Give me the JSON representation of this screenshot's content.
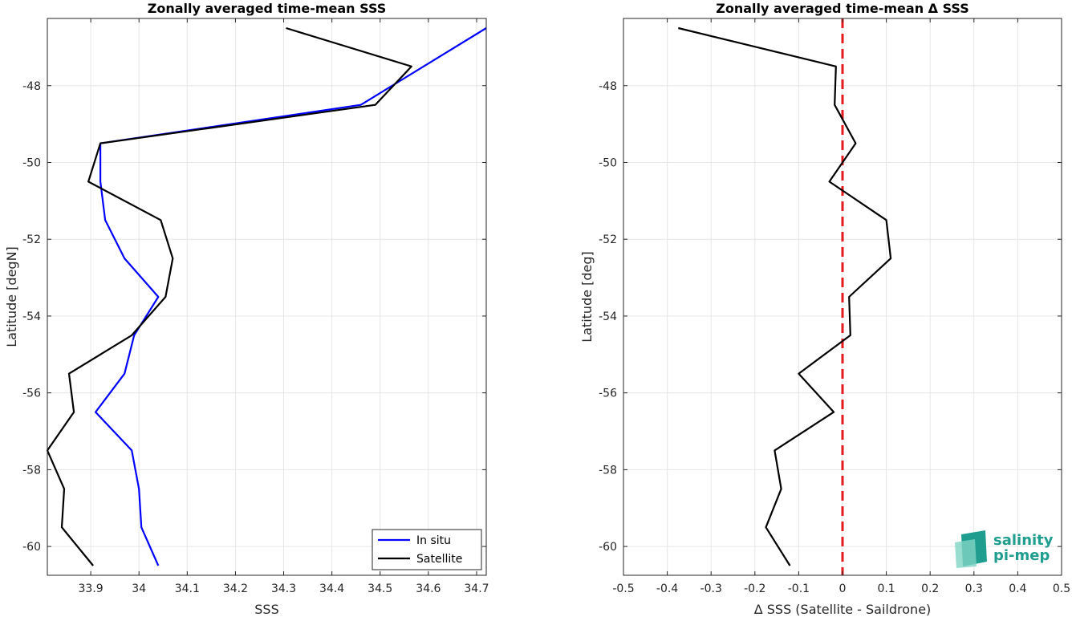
{
  "chart_data": [
    {
      "type": "line",
      "title": "Zonally averaged time-mean SSS",
      "xlabel": "SSS",
      "ylabel": "Latitude [degN]",
      "xlim": [
        33.81,
        34.72
      ],
      "ylim": [
        -60.75,
        -46.25
      ],
      "xticks": [
        33.9,
        34.0,
        34.1,
        34.2,
        34.3,
        34.4,
        34.5,
        34.6,
        34.7
      ],
      "xtick_labels": [
        "33.9",
        "34",
        "34.1",
        "34.2",
        "34.3",
        "34.4",
        "34.5",
        "34.6",
        "34.7"
      ],
      "yticks": [
        -60,
        -58,
        -56,
        -54,
        -52,
        -50,
        -48
      ],
      "ytick_labels": [
        "-60",
        "-58",
        "-56",
        "-54",
        "-52",
        "-50",
        "-48"
      ],
      "grid": true,
      "legend": "bottom-right",
      "series": [
        {
          "name": "In situ",
          "color": "#0000ff",
          "x": [
            34.72,
            34.46,
            33.92,
            33.92,
            33.93,
            33.97,
            34.04,
            33.99,
            33.97,
            33.91,
            33.985,
            34.0,
            34.005,
            34.04
          ],
          "y": [
            -46.5,
            -48.5,
            -49.5,
            -50.5,
            -51.5,
            -52.5,
            -53.5,
            -54.5,
            -55.5,
            -56.5,
            -57.5,
            -58.5,
            -59.5,
            -60.5
          ]
        },
        {
          "name": "Satellite",
          "color": "#000000",
          "x": [
            34.305,
            34.565,
            34.49,
            33.92,
            33.895,
            34.045,
            34.07,
            34.055,
            33.985,
            33.855,
            33.865,
            33.81,
            33.845,
            33.84,
            33.905
          ],
          "y": [
            -46.5,
            -47.5,
            -48.5,
            -49.5,
            -50.5,
            -51.5,
            -52.5,
            -53.5,
            -54.5,
            -55.5,
            -56.5,
            -57.5,
            -58.5,
            -59.5,
            -60.5
          ]
        }
      ]
    },
    {
      "type": "line",
      "title": "Zonally averaged time-mean Δ SSS",
      "xlabel": "Δ SSS (Satellite - Saildrone)",
      "ylabel": "Latitude [deg]",
      "xlim": [
        -0.5,
        0.5
      ],
      "ylim": [
        -60.75,
        -46.25
      ],
      "xticks": [
        -0.5,
        -0.4,
        -0.3,
        -0.2,
        -0.1,
        0,
        0.1,
        0.2,
        0.3,
        0.4,
        0.5
      ],
      "xtick_labels": [
        "-0.5",
        "-0.4",
        "-0.3",
        "-0.2",
        "-0.1",
        "0",
        "0.1",
        "0.2",
        "0.3",
        "0.4",
        "0.5"
      ],
      "yticks": [
        -60,
        -58,
        -56,
        -54,
        -52,
        -50,
        -48
      ],
      "ytick_labels": [
        "-60",
        "-58",
        "-56",
        "-54",
        "-52",
        "-50",
        "-48"
      ],
      "grid": true,
      "reference_line": {
        "x": 0,
        "color": "#e41a1c",
        "style": "dashed"
      },
      "series": [
        {
          "color": "#000000",
          "x": [
            -0.375,
            -0.015,
            -0.018,
            0.03,
            -0.03,
            0.1,
            0.11,
            0.015,
            0.018,
            -0.1,
            -0.02,
            -0.155,
            -0.14,
            -0.175,
            -0.12
          ],
          "y": [
            -46.5,
            -47.5,
            -48.5,
            -49.5,
            -50.5,
            -51.5,
            -52.5,
            -53.5,
            -54.5,
            -55.5,
            -56.5,
            -57.5,
            -58.5,
            -59.5,
            -60.5
          ]
        }
      ]
    }
  ],
  "logo": {
    "line1": "salinity",
    "line2": "pi-mep"
  }
}
